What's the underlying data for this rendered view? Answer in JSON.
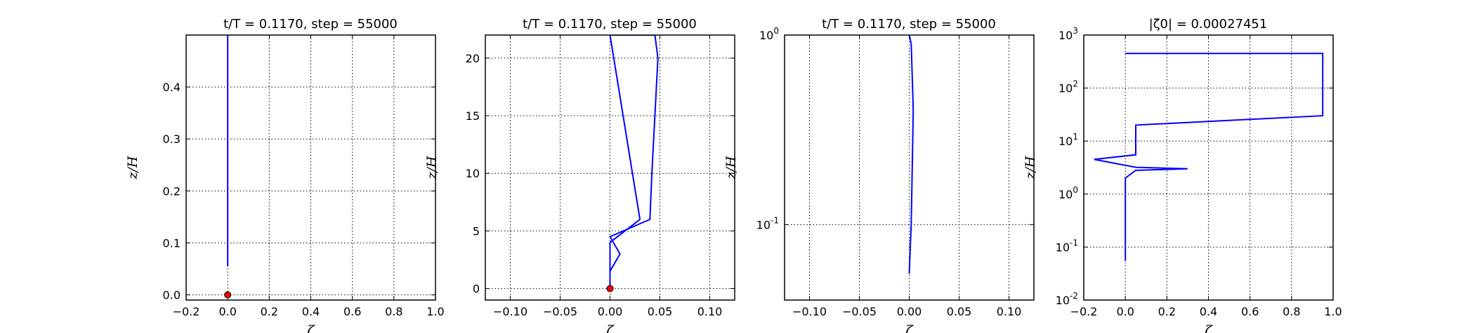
{
  "chart_data": [
    {
      "type": "line",
      "title": "t/T = 0.1170, step = 55000",
      "xlabel": "ζ",
      "ylabel": "z/H",
      "xlim": [
        -0.2,
        1.0
      ],
      "ylim": [
        -0.01,
        0.5
      ],
      "xscale": "linear",
      "yscale": "linear",
      "grid": true,
      "xticks": [
        "−0.2",
        "0.0",
        "0.2",
        "0.4",
        "0.6",
        "0.8",
        "1.0"
      ],
      "yticks": [
        "0.0",
        "0.1",
        "0.2",
        "0.3",
        "0.4"
      ],
      "series": [
        {
          "color": "#0000ff",
          "x": [
            0.0,
            0.0
          ],
          "y": [
            0.055,
            0.5
          ]
        }
      ],
      "markers": [
        {
          "x": 0.0,
          "y": 0.0,
          "color": "#ff0000"
        }
      ]
    },
    {
      "type": "line",
      "title": "t/T = 0.1170, step = 55000",
      "xlabel": "ζ",
      "ylabel": "z/H",
      "xlim": [
        -0.125,
        0.125
      ],
      "ylim": [
        -1,
        22
      ],
      "xscale": "linear",
      "yscale": "linear",
      "grid": true,
      "xticks": [
        "−0.10",
        "−0.05",
        "0.00",
        "0.05",
        "0.10"
      ],
      "yticks": [
        "0",
        "5",
        "10",
        "15",
        "20"
      ],
      "series": [
        {
          "color": "#0000ff",
          "x": [
            0.0,
            0.0,
            0.01,
            0.0,
            0.04,
            0.042,
            0.045,
            0.048,
            0.045,
            0.0,
            0.03,
            0.0,
            0.0
          ],
          "y": [
            -0.3,
            1.5,
            3.0,
            4.5,
            6.0,
            10.0,
            15.0,
            20.0,
            22.0,
            22.0,
            6.0,
            4.0,
            -0.3
          ]
        }
      ],
      "markers": [
        {
          "x": 0.0,
          "y": 0.0,
          "color": "#ff0000"
        }
      ]
    },
    {
      "type": "line",
      "title": "t/T = 0.1170, step = 55000",
      "xlabel": "ζ",
      "ylabel": "z/H",
      "xlim": [
        -0.125,
        0.125
      ],
      "ylim": [
        0.04,
        1.0
      ],
      "xscale": "linear",
      "yscale": "log",
      "grid": true,
      "xticks": [
        "−0.10",
        "−0.05",
        "0.00",
        "0.05",
        "0.10"
      ],
      "yticks": [
        "10^-1",
        "10^0"
      ],
      "series": [
        {
          "color": "#0000ff",
          "x": [
            0.0,
            0.002,
            0.003,
            0.004,
            0.003,
            0.002,
            0.0
          ],
          "y": [
            0.055,
            0.1,
            0.2,
            0.4,
            0.6,
            0.9,
            1.0
          ]
        }
      ],
      "markers": []
    },
    {
      "type": "line",
      "title": "|ζ0| = 0.00027451",
      "xlabel": "ζ",
      "ylabel": "z/H",
      "xlim": [
        -0.2,
        1.0
      ],
      "ylim": [
        0.01,
        1000
      ],
      "xscale": "linear",
      "yscale": "log",
      "grid": true,
      "xticks": [
        "−0.2",
        "0.0",
        "0.2",
        "0.4",
        "0.6",
        "0.8",
        "1.0"
      ],
      "yticks": [
        "10^-2",
        "10^-1",
        "10^0",
        "10^1",
        "10^2",
        "10^3"
      ],
      "series": [
        {
          "color": "#0000ff",
          "x": [
            0.0,
            0.0,
            0.05,
            0.3,
            0.05,
            -0.15,
            0.05,
            0.05,
            0.95,
            0.95,
            0.0
          ],
          "y": [
            0.055,
            2.0,
            2.8,
            3.0,
            3.2,
            4.5,
            5.5,
            20,
            30,
            450,
            450
          ]
        }
      ],
      "markers": []
    }
  ]
}
